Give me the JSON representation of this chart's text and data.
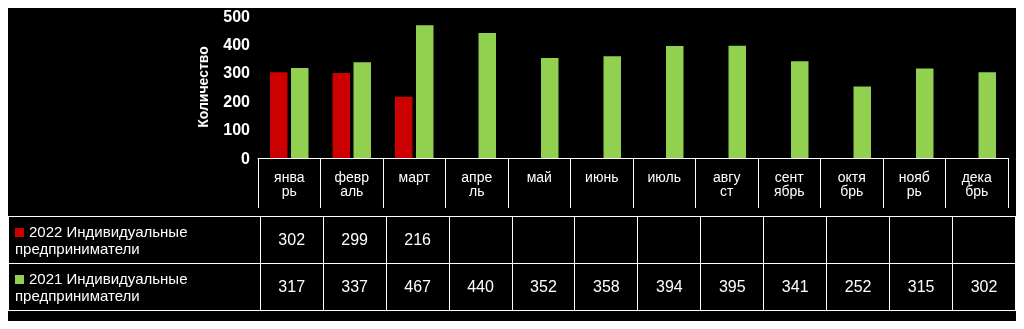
{
  "chart_data": {
    "type": "bar",
    "ylabel": "Количество",
    "categories": [
      "январь",
      "февраль",
      "март",
      "апрель",
      "май",
      "июнь",
      "июль",
      "август",
      "сентябрь",
      "октябрь",
      "ноябрь",
      "декабрь"
    ],
    "series": [
      {
        "name": "2022 Индивидуальные предприниматели",
        "color": "#cc0000",
        "values": [
          302,
          299,
          216,
          null,
          null,
          null,
          null,
          null,
          null,
          null,
          null,
          null
        ]
      },
      {
        "name": "2021 Индивидуальные предприниматели",
        "color": "#92d050",
        "values": [
          317,
          337,
          467,
          440,
          352,
          358,
          394,
          395,
          341,
          252,
          315,
          302
        ]
      }
    ],
    "ylim": [
      0,
      500
    ],
    "yticks": [
      0,
      100,
      200,
      300,
      400,
      500
    ],
    "grid": false,
    "legend": "bottom left",
    "data_labels": true
  }
}
